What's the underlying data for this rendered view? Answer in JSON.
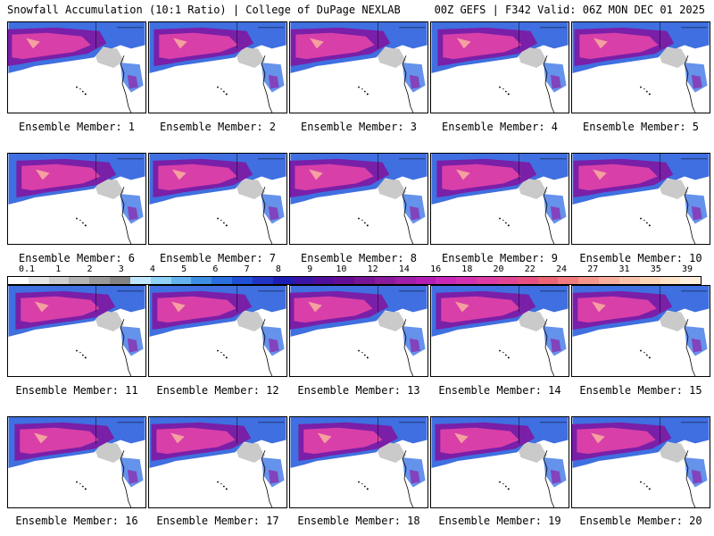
{
  "header": {
    "left_title": "Snowfall Accumulation (10:1 Ratio) | College of DuPage NEXLAB",
    "right_title": "00Z GEFS | F342 Valid: 06Z MON DEC 01 2025"
  },
  "panels": [
    {
      "label": "Ensemble Member: 1"
    },
    {
      "label": "Ensemble Member: 2"
    },
    {
      "label": "Ensemble Member: 3"
    },
    {
      "label": "Ensemble Member: 4"
    },
    {
      "label": "Ensemble Member: 5"
    },
    {
      "label": "Ensemble Member: 6"
    },
    {
      "label": "Ensemble Member: 7"
    },
    {
      "label": "Ensemble Member: 8"
    },
    {
      "label": "Ensemble Member: 9"
    },
    {
      "label": "Ensemble Member: 10"
    },
    {
      "label": "Ensemble Member: 11"
    },
    {
      "label": "Ensemble Member: 12"
    },
    {
      "label": "Ensemble Member: 13"
    },
    {
      "label": "Ensemble Member: 14"
    },
    {
      "label": "Ensemble Member: 15"
    },
    {
      "label": "Ensemble Member: 16"
    },
    {
      "label": "Ensemble Member: 17"
    },
    {
      "label": "Ensemble Member: 18"
    },
    {
      "label": "Ensemble Member: 19"
    },
    {
      "label": "Ensemble Member: 20"
    }
  ],
  "legend": {
    "tick_labels": [
      "0.1",
      "1",
      "2",
      "3",
      "4",
      "5",
      "6",
      "7",
      "8",
      "9",
      "10",
      "12",
      "14",
      "16",
      "18",
      "20",
      "22",
      "24",
      "27",
      "31",
      "35",
      "39"
    ],
    "colors": [
      "#ffffff",
      "#e6e6e6",
      "#cfcfcf",
      "#b4b4b4",
      "#9a9a9a",
      "#838383",
      "#bfe8ff",
      "#8ed2f5",
      "#63b4ee",
      "#3d8fe3",
      "#2a6fe0",
      "#1f50d8",
      "#2233c8",
      "#1e1eb4",
      "#3a14a6",
      "#50109c",
      "#640e96",
      "#781496",
      "#8c1a9e",
      "#a01ea8",
      "#b41eb4",
      "#c828b8",
      "#d232b0",
      "#dc3ca4",
      "#e14696",
      "#e65082",
      "#eb6478",
      "#f07c82",
      "#f5968c",
      "#f8af9c",
      "#fac3aa",
      "#fcd5b9",
      "#fde4c8",
      "#fef0dc"
    ]
  }
}
